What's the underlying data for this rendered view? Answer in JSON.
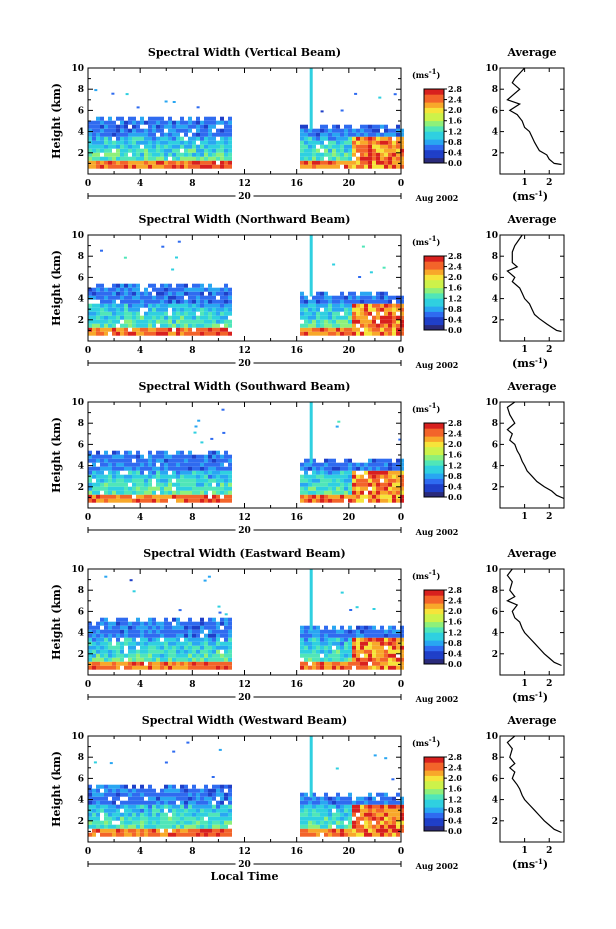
{
  "chart_data": [
    {
      "type": "heatmap",
      "title": "Spectral Width (Vertical Beam)",
      "ylabel": "Height (km)",
      "x_ticks": [
        "0",
        "4",
        "8",
        "12",
        "16",
        "20",
        "0"
      ],
      "day_label": "20",
      "date_label": "Aug 2002",
      "ylim": [
        0,
        10
      ],
      "xlim": [
        0,
        24
      ],
      "y_ticks": [
        "2",
        "4",
        "6",
        "8",
        "10"
      ],
      "colorbar": {
        "unit": "(ms",
        "unit_exp": "-1",
        "unit_close": ")",
        "ticks": [
          "0.0",
          "0.4",
          "0.8",
          "1.2",
          "1.6",
          "2.0",
          "2.4",
          "2.8"
        ]
      },
      "average": {
        "title": "Average",
        "xlabel": "(ms",
        "xlabel_exp": "-1",
        "xlabel_close": ")",
        "x_ticks": [
          "1",
          "2"
        ],
        "xlim": [
          0,
          2.6
        ],
        "profile": [
          [
            1.0,
            10
          ],
          [
            0.6,
            9
          ],
          [
            0.5,
            8.6
          ],
          [
            0.8,
            8
          ],
          [
            0.5,
            7.4
          ],
          [
            0.3,
            7
          ],
          [
            0.8,
            6.6
          ],
          [
            0.4,
            6
          ],
          [
            0.7,
            5.6
          ],
          [
            0.9,
            5
          ],
          [
            1.0,
            4.4
          ],
          [
            1.2,
            4
          ],
          [
            1.3,
            3.5
          ],
          [
            1.4,
            3
          ],
          [
            1.5,
            2.6
          ],
          [
            1.6,
            2.2
          ],
          [
            1.9,
            1.8
          ],
          [
            2.0,
            1.4
          ],
          [
            2.2,
            1.0
          ],
          [
            2.5,
            0.9
          ]
        ]
      }
    },
    {
      "type": "heatmap",
      "title": "Spectral Width (Northward Beam)",
      "ylabel": "Height (km)",
      "x_ticks": [
        "0",
        "4",
        "8",
        "12",
        "16",
        "20",
        "0"
      ],
      "day_label": "20",
      "date_label": "Aug 2002",
      "ylim": [
        0,
        10
      ],
      "xlim": [
        0,
        24
      ],
      "y_ticks": [
        "2",
        "4",
        "6",
        "8",
        "10"
      ],
      "colorbar": {
        "unit": "(ms",
        "unit_exp": "-1",
        "unit_close": ")",
        "ticks": [
          "0.0",
          "0.4",
          "0.8",
          "1.2",
          "1.6",
          "2.0",
          "2.4",
          "2.8"
        ]
      },
      "average": {
        "title": "Average",
        "xlabel": "(ms",
        "xlabel_exp": "-1",
        "xlabel_close": ")",
        "x_ticks": [
          "1",
          "2"
        ],
        "xlim": [
          0,
          2.6
        ],
        "profile": [
          [
            0.9,
            10
          ],
          [
            0.6,
            9
          ],
          [
            0.5,
            8.4
          ],
          [
            0.5,
            7.4
          ],
          [
            0.7,
            7
          ],
          [
            0.3,
            6.6
          ],
          [
            0.6,
            6
          ],
          [
            0.5,
            5.6
          ],
          [
            0.8,
            5
          ],
          [
            0.9,
            4.5
          ],
          [
            1.0,
            4
          ],
          [
            1.2,
            3.5
          ],
          [
            1.3,
            3
          ],
          [
            1.4,
            2.5
          ],
          [
            1.6,
            2.1
          ],
          [
            1.9,
            1.6
          ],
          [
            2.1,
            1.3
          ],
          [
            2.3,
            1.0
          ],
          [
            2.5,
            0.9
          ]
        ]
      }
    },
    {
      "type": "heatmap",
      "title": "Spectral Width (Southward Beam)",
      "ylabel": "Height (km)",
      "x_ticks": [
        "0",
        "4",
        "8",
        "12",
        "16",
        "20",
        "0"
      ],
      "day_label": "20",
      "date_label": "Aug 2002",
      "ylim": [
        0,
        10
      ],
      "xlim": [
        0,
        24
      ],
      "y_ticks": [
        "2",
        "4",
        "6",
        "8",
        "10"
      ],
      "colorbar": {
        "unit": "(ms",
        "unit_exp": "-1",
        "unit_close": ")",
        "ticks": [
          "0.0",
          "0.4",
          "0.8",
          "1.2",
          "1.6",
          "2.0",
          "2.4",
          "2.8"
        ]
      },
      "average": {
        "title": "Average",
        "xlabel": "",
        "xlabel_exp": "",
        "xlabel_close": "",
        "x_ticks": [
          "1",
          "2"
        ],
        "xlim": [
          0,
          2.6
        ],
        "profile": [
          [
            0.6,
            10
          ],
          [
            0.3,
            9.5
          ],
          [
            0.4,
            8.8
          ],
          [
            0.6,
            8
          ],
          [
            0.3,
            7.4
          ],
          [
            0.5,
            7
          ],
          [
            0.4,
            6.4
          ],
          [
            0.6,
            6
          ],
          [
            0.7,
            5.4
          ],
          [
            0.8,
            5
          ],
          [
            0.9,
            4.4
          ],
          [
            1.0,
            4
          ],
          [
            1.1,
            3.5
          ],
          [
            1.3,
            3
          ],
          [
            1.5,
            2.5
          ],
          [
            1.8,
            2
          ],
          [
            2.1,
            1.6
          ],
          [
            2.3,
            1.2
          ],
          [
            2.6,
            0.9
          ]
        ]
      }
    },
    {
      "type": "heatmap",
      "title": "Spectral Width (Eastward Beam)",
      "ylabel": "Height (km)",
      "x_ticks": [
        "0",
        "4",
        "8",
        "12",
        "16",
        "20",
        "0"
      ],
      "day_label": "20",
      "date_label": "Aug 2002",
      "ylim": [
        0,
        10
      ],
      "xlim": [
        0,
        24
      ],
      "y_ticks": [
        "2",
        "4",
        "6",
        "8",
        "10"
      ],
      "colorbar": {
        "unit": "(ms",
        "unit_exp": "-1",
        "unit_close": ")",
        "ticks": [
          "0.0",
          "0.4",
          "0.8",
          "1.2",
          "1.6",
          "2.0",
          "2.4",
          "2.8"
        ]
      },
      "average": {
        "title": "Average",
        "xlabel": "(ms",
        "xlabel_exp": "-1",
        "xlabel_close": ")",
        "x_ticks": [
          "1",
          "2"
        ],
        "xlim": [
          0,
          2.6
        ],
        "profile": [
          [
            0.5,
            10
          ],
          [
            0.3,
            9.4
          ],
          [
            0.5,
            8.8
          ],
          [
            0.4,
            8
          ],
          [
            0.6,
            7.4
          ],
          [
            0.3,
            7
          ],
          [
            0.7,
            6.6
          ],
          [
            0.5,
            6
          ],
          [
            0.6,
            5.4
          ],
          [
            0.8,
            5
          ],
          [
            0.9,
            4.4
          ],
          [
            1.0,
            4
          ],
          [
            1.2,
            3.5
          ],
          [
            1.4,
            3
          ],
          [
            1.6,
            2.5
          ],
          [
            1.8,
            2
          ],
          [
            2.0,
            1.6
          ],
          [
            2.2,
            1.2
          ],
          [
            2.5,
            0.9
          ]
        ]
      }
    },
    {
      "type": "heatmap",
      "title": "Spectral Width (Westward Beam)",
      "ylabel": "Height (km)",
      "x_ticks": [
        "0",
        "4",
        "8",
        "12",
        "16",
        "20",
        "0"
      ],
      "day_label": "20",
      "date_label": "Aug 2002",
      "xlabel": "Local Time",
      "ylim": [
        0,
        10
      ],
      "xlim": [
        0,
        24
      ],
      "y_ticks": [
        "2",
        "4",
        "6",
        "8",
        "10"
      ],
      "colorbar": {
        "unit": "(ms",
        "unit_exp": "-1",
        "unit_close": ")",
        "ticks": [
          "0.0",
          "0.4",
          "0.8",
          "1.2",
          "1.6",
          "2.0",
          "2.4",
          "2.8"
        ]
      },
      "average": {
        "title": "Average",
        "xlabel": "(ms",
        "xlabel_exp": "-1",
        "xlabel_close": ")",
        "x_ticks": [
          "1",
          "2"
        ],
        "xlim": [
          0,
          2.6
        ],
        "profile": [
          [
            0.6,
            10
          ],
          [
            0.3,
            9.4
          ],
          [
            0.5,
            8.8
          ],
          [
            0.4,
            8
          ],
          [
            0.6,
            7.4
          ],
          [
            0.4,
            7
          ],
          [
            0.6,
            6.6
          ],
          [
            0.5,
            6
          ],
          [
            0.7,
            5.4
          ],
          [
            0.8,
            5
          ],
          [
            0.9,
            4.4
          ],
          [
            1.0,
            4
          ],
          [
            1.2,
            3.5
          ],
          [
            1.4,
            3
          ],
          [
            1.6,
            2.5
          ],
          [
            1.8,
            2
          ],
          [
            2.0,
            1.6
          ],
          [
            2.2,
            1.2
          ],
          [
            2.5,
            0.9
          ]
        ]
      }
    }
  ]
}
